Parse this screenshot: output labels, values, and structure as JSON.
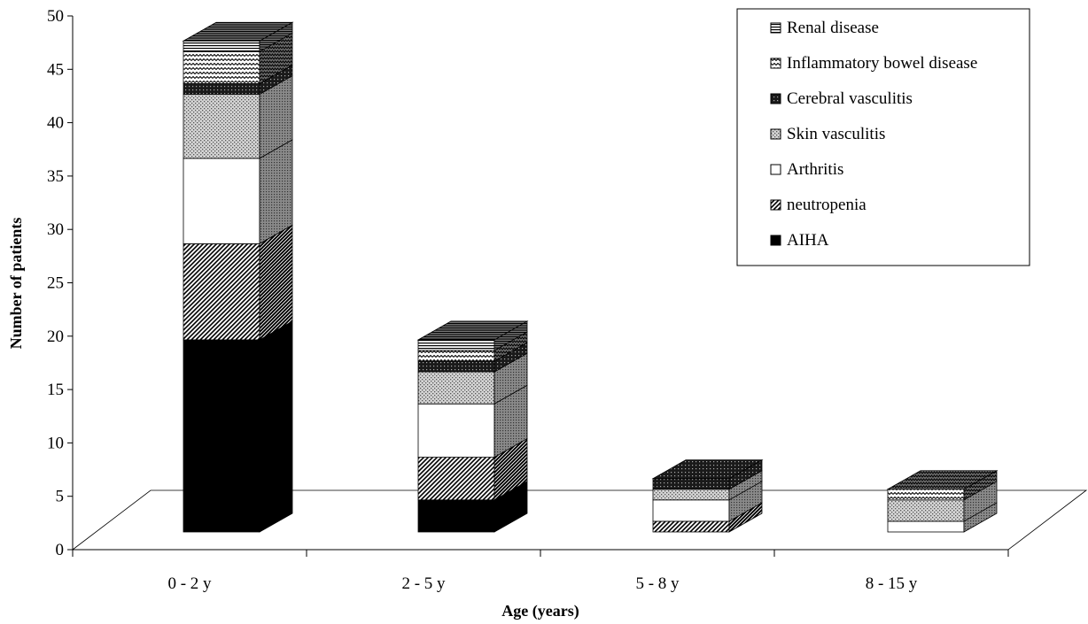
{
  "chart_data": {
    "type": "bar",
    "stacked": true,
    "three_d": true,
    "title": "",
    "xlabel": "Age (years)",
    "ylabel": "Number of patients",
    "ylim": [
      0,
      50
    ],
    "yticks": [
      0,
      5,
      10,
      15,
      20,
      25,
      30,
      35,
      40,
      45,
      50
    ],
    "grid": false,
    "legend_position": "top-right",
    "categories": [
      "0 - 2 y",
      "2 - 5 y",
      "5 - 8 y",
      "8 - 15 y"
    ],
    "series": [
      {
        "name": "AIHA",
        "values": [
          18,
          3,
          0,
          0
        ],
        "pattern": "solid-black"
      },
      {
        "name": "neutropenia",
        "values": [
          9,
          4,
          1,
          0
        ],
        "pattern": "diagonal-hatch"
      },
      {
        "name": "Arthritis",
        "values": [
          8,
          5,
          2,
          1
        ],
        "pattern": "white"
      },
      {
        "name": "Skin vasculitis",
        "values": [
          6,
          3,
          1,
          2
        ],
        "pattern": "light-dots"
      },
      {
        "name": "Cerebral vasculitis",
        "values": [
          1,
          1,
          1,
          0
        ],
        "pattern": "dark-dots"
      },
      {
        "name": "Inflammatory bowel disease",
        "values": [
          3,
          1,
          0,
          1
        ],
        "pattern": "zigzag"
      },
      {
        "name": "Renal disease",
        "values": [
          1,
          1,
          0,
          0
        ],
        "pattern": "horizontal-lines"
      }
    ]
  }
}
